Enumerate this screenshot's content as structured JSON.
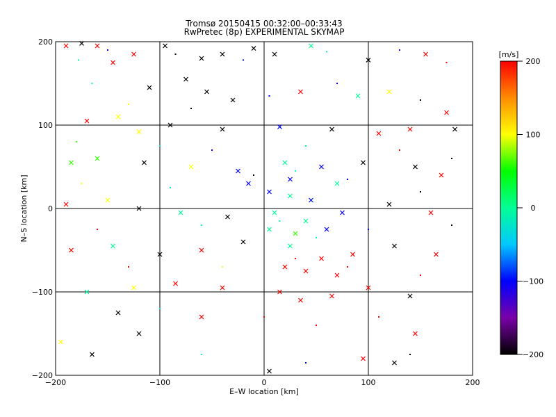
{
  "chart_data": {
    "type": "scatter",
    "title": "Tromsø 20150415 00:32:00–00:33:43",
    "subtitle": "RwPretec (8p) EXPERIMENTAL SKYMAP",
    "xlabel": "E–W location [km]",
    "ylabel": "N–S location [km]",
    "xlim": [
      -200,
      200
    ],
    "ylim": [
      -200,
      200
    ],
    "x_ticks": [
      -200,
      -100,
      0,
      100,
      200
    ],
    "y_ticks": [
      -200,
      -100,
      0,
      100,
      200
    ],
    "grid": true,
    "colorbar": {
      "label": "[m/s]",
      "range": [
        -200,
        200
      ],
      "ticks": [
        -200,
        -100,
        0,
        100,
        200
      ],
      "colors": [
        "#000000",
        "#7a00a8",
        "#0000ff",
        "#00c8ff",
        "#00ff96",
        "#00ff00",
        "#ffff00",
        "#ff8c00",
        "#ff0000"
      ]
    },
    "markers": [
      "dot",
      "cross"
    ],
    "points": [
      {
        "x": -190,
        "y": 195,
        "v": 200,
        "m": "x"
      },
      {
        "x": -175,
        "y": 198,
        "v": -200,
        "m": "x"
      },
      {
        "x": -160,
        "y": 195,
        "v": 200,
        "m": "x"
      },
      {
        "x": -125,
        "y": 185,
        "v": 200,
        "m": "x"
      },
      {
        "x": -95,
        "y": 195,
        "v": -200,
        "m": "x"
      },
      {
        "x": -60,
        "y": 180,
        "v": -200,
        "m": "x"
      },
      {
        "x": -40,
        "y": 185,
        "v": -200,
        "m": "x"
      },
      {
        "x": -10,
        "y": 192,
        "v": -200,
        "m": "x"
      },
      {
        "x": 10,
        "y": 185,
        "v": -200,
        "m": "x"
      },
      {
        "x": 45,
        "y": 195,
        "v": 0,
        "m": "x"
      },
      {
        "x": 100,
        "y": 178,
        "v": -200,
        "m": "x"
      },
      {
        "x": 155,
        "y": 185,
        "v": 200,
        "m": "x"
      },
      {
        "x": -145,
        "y": 175,
        "v": 200,
        "m": "x"
      },
      {
        "x": -110,
        "y": 145,
        "v": -200,
        "m": "x"
      },
      {
        "x": -75,
        "y": 155,
        "v": -200,
        "m": "x"
      },
      {
        "x": -55,
        "y": 140,
        "v": -200,
        "m": "x"
      },
      {
        "x": -30,
        "y": 130,
        "v": -200,
        "m": "x"
      },
      {
        "x": 35,
        "y": 140,
        "v": 200,
        "m": "x"
      },
      {
        "x": 90,
        "y": 135,
        "v": 0,
        "m": "x"
      },
      {
        "x": 120,
        "y": 140,
        "v": 100,
        "m": "x"
      },
      {
        "x": -170,
        "y": 105,
        "v": 200,
        "m": "x"
      },
      {
        "x": -140,
        "y": 110,
        "v": 100,
        "m": "x"
      },
      {
        "x": -120,
        "y": 92,
        "v": 100,
        "m": "x"
      },
      {
        "x": -90,
        "y": 100,
        "v": -200,
        "m": "x"
      },
      {
        "x": -40,
        "y": 95,
        "v": -200,
        "m": "x"
      },
      {
        "x": 15,
        "y": 98,
        "v": -100,
        "m": "x"
      },
      {
        "x": 65,
        "y": 95,
        "v": -200,
        "m": "x"
      },
      {
        "x": 110,
        "y": 90,
        "v": 200,
        "m": "x"
      },
      {
        "x": 140,
        "y": 95,
        "v": 200,
        "m": "x"
      },
      {
        "x": 183,
        "y": 95,
        "v": -200,
        "m": "x"
      },
      {
        "x": 175,
        "y": 115,
        "v": 200,
        "m": "x"
      },
      {
        "x": -185,
        "y": 55,
        "v": 60,
        "m": "x"
      },
      {
        "x": -160,
        "y": 60,
        "v": 60,
        "m": "x"
      },
      {
        "x": -115,
        "y": 55,
        "v": -200,
        "m": "x"
      },
      {
        "x": -70,
        "y": 50,
        "v": 100,
        "m": "x"
      },
      {
        "x": -25,
        "y": 45,
        "v": -100,
        "m": "x"
      },
      {
        "x": 20,
        "y": 55,
        "v": 0,
        "m": "x"
      },
      {
        "x": 55,
        "y": 50,
        "v": -100,
        "m": "x"
      },
      {
        "x": 95,
        "y": 55,
        "v": -200,
        "m": "x"
      },
      {
        "x": 145,
        "y": 50,
        "v": -200,
        "m": "x"
      },
      {
        "x": 170,
        "y": 40,
        "v": 200,
        "m": "x"
      },
      {
        "x": -190,
        "y": 5,
        "v": 200,
        "m": "x"
      },
      {
        "x": -150,
        "y": 10,
        "v": 100,
        "m": "x"
      },
      {
        "x": -120,
        "y": 0,
        "v": -200,
        "m": "x"
      },
      {
        "x": -80,
        "y": -5,
        "v": 0,
        "m": "x"
      },
      {
        "x": -35,
        "y": -10,
        "v": -200,
        "m": "x"
      },
      {
        "x": 10,
        "y": -5,
        "v": 0,
        "m": "x"
      },
      {
        "x": 40,
        "y": -15,
        "v": 0,
        "m": "x"
      },
      {
        "x": 75,
        "y": -5,
        "v": -100,
        "m": "x"
      },
      {
        "x": 120,
        "y": 5,
        "v": -200,
        "m": "x"
      },
      {
        "x": 160,
        "y": -5,
        "v": 200,
        "m": "x"
      },
      {
        "x": -185,
        "y": -50,
        "v": 200,
        "m": "x"
      },
      {
        "x": -145,
        "y": -45,
        "v": 0,
        "m": "x"
      },
      {
        "x": -100,
        "y": -55,
        "v": -200,
        "m": "x"
      },
      {
        "x": -60,
        "y": -50,
        "v": 200,
        "m": "x"
      },
      {
        "x": -20,
        "y": -40,
        "v": -200,
        "m": "x"
      },
      {
        "x": 25,
        "y": -45,
        "v": 0,
        "m": "x"
      },
      {
        "x": 55,
        "y": -60,
        "v": 200,
        "m": "x"
      },
      {
        "x": 85,
        "y": -55,
        "v": 200,
        "m": "x"
      },
      {
        "x": 125,
        "y": -45,
        "v": -200,
        "m": "x"
      },
      {
        "x": 165,
        "y": -55,
        "v": 200,
        "m": "x"
      },
      {
        "x": -170,
        "y": -100,
        "v": 0,
        "m": "x"
      },
      {
        "x": -125,
        "y": -95,
        "v": 100,
        "m": "x"
      },
      {
        "x": -85,
        "y": -90,
        "v": 200,
        "m": "x"
      },
      {
        "x": -40,
        "y": -95,
        "v": 200,
        "m": "x"
      },
      {
        "x": 15,
        "y": -100,
        "v": 200,
        "m": "x"
      },
      {
        "x": 35,
        "y": -110,
        "v": 200,
        "m": "x"
      },
      {
        "x": 65,
        "y": -105,
        "v": 200,
        "m": "x"
      },
      {
        "x": 100,
        "y": -95,
        "v": 200,
        "m": "x"
      },
      {
        "x": 140,
        "y": -105,
        "v": -200,
        "m": "x"
      },
      {
        "x": -195,
        "y": -160,
        "v": 100,
        "m": "x"
      },
      {
        "x": -165,
        "y": -175,
        "v": -200,
        "m": "x"
      },
      {
        "x": -140,
        "y": -125,
        "v": -200,
        "m": "x"
      },
      {
        "x": -120,
        "y": -150,
        "v": -200,
        "m": "x"
      },
      {
        "x": -60,
        "y": -130,
        "v": 200,
        "m": "x"
      },
      {
        "x": 5,
        "y": -195,
        "v": -200,
        "m": "x"
      },
      {
        "x": 95,
        "y": -180,
        "v": 200,
        "m": "x"
      },
      {
        "x": 145,
        "y": -150,
        "v": 200,
        "m": "x"
      },
      {
        "x": 125,
        "y": -185,
        "v": -200,
        "m": "x"
      },
      {
        "x": 5,
        "y": 20,
        "v": -100,
        "m": "x"
      },
      {
        "x": 25,
        "y": 15,
        "v": 0,
        "m": "x"
      },
      {
        "x": 45,
        "y": 10,
        "v": -100,
        "m": "x"
      },
      {
        "x": 5,
        "y": -25,
        "v": 0,
        "m": "x"
      },
      {
        "x": 30,
        "y": -30,
        "v": 60,
        "m": "x"
      },
      {
        "x": 60,
        "y": -25,
        "v": -100,
        "m": "x"
      },
      {
        "x": 20,
        "y": -70,
        "v": 200,
        "m": "x"
      },
      {
        "x": 40,
        "y": -75,
        "v": 200,
        "m": "x"
      },
      {
        "x": 70,
        "y": -80,
        "v": 200,
        "m": "x"
      },
      {
        "x": 25,
        "y": 35,
        "v": -100,
        "m": "x"
      },
      {
        "x": -15,
        "y": 30,
        "v": -100,
        "m": "x"
      },
      {
        "x": 70,
        "y": 30,
        "v": 0,
        "m": "x"
      },
      {
        "x": -178,
        "y": 178,
        "v": 0,
        "m": "."
      },
      {
        "x": -150,
        "y": 190,
        "v": -100,
        "m": "."
      },
      {
        "x": -85,
        "y": 185,
        "v": -200,
        "m": "."
      },
      {
        "x": -20,
        "y": 178,
        "v": -100,
        "m": "."
      },
      {
        "x": 60,
        "y": 188,
        "v": 0,
        "m": "."
      },
      {
        "x": 130,
        "y": 190,
        "v": -100,
        "m": "."
      },
      {
        "x": 175,
        "y": 175,
        "v": 200,
        "m": "."
      },
      {
        "x": -165,
        "y": 150,
        "v": 0,
        "m": "."
      },
      {
        "x": -130,
        "y": 125,
        "v": 100,
        "m": "."
      },
      {
        "x": -70,
        "y": 120,
        "v": -200,
        "m": "."
      },
      {
        "x": 5,
        "y": 135,
        "v": -100,
        "m": "."
      },
      {
        "x": 70,
        "y": 150,
        "v": -100,
        "m": "."
      },
      {
        "x": 150,
        "y": 130,
        "v": -200,
        "m": "."
      },
      {
        "x": -180,
        "y": 80,
        "v": 60,
        "m": "."
      },
      {
        "x": -100,
        "y": 75,
        "v": 0,
        "m": "."
      },
      {
        "x": -50,
        "y": 70,
        "v": -100,
        "m": "."
      },
      {
        "x": 40,
        "y": 75,
        "v": 0,
        "m": "."
      },
      {
        "x": 130,
        "y": 70,
        "v": 200,
        "m": "."
      },
      {
        "x": 180,
        "y": 60,
        "v": -200,
        "m": "."
      },
      {
        "x": -175,
        "y": 30,
        "v": 100,
        "m": "."
      },
      {
        "x": -90,
        "y": 25,
        "v": 0,
        "m": "."
      },
      {
        "x": -10,
        "y": 40,
        "v": -200,
        "m": "."
      },
      {
        "x": 30,
        "y": 45,
        "v": 0,
        "m": "."
      },
      {
        "x": 80,
        "y": 35,
        "v": -100,
        "m": "."
      },
      {
        "x": 150,
        "y": 20,
        "v": -200,
        "m": "."
      },
      {
        "x": -160,
        "y": -25,
        "v": 200,
        "m": "."
      },
      {
        "x": -60,
        "y": -20,
        "v": 0,
        "m": "."
      },
      {
        "x": 15,
        "y": -15,
        "v": 0,
        "m": "."
      },
      {
        "x": 50,
        "y": -35,
        "v": 0,
        "m": "."
      },
      {
        "x": 100,
        "y": -25,
        "v": -100,
        "m": "."
      },
      {
        "x": 180,
        "y": -20,
        "v": -200,
        "m": "."
      },
      {
        "x": -130,
        "y": -70,
        "v": 200,
        "m": "."
      },
      {
        "x": -40,
        "y": -70,
        "v": 100,
        "m": "."
      },
      {
        "x": 30,
        "y": -60,
        "v": 200,
        "m": "."
      },
      {
        "x": 80,
        "y": -70,
        "v": 200,
        "m": "."
      },
      {
        "x": 150,
        "y": -80,
        "v": 200,
        "m": "."
      },
      {
        "x": -100,
        "y": -120,
        "v": 0,
        "m": "."
      },
      {
        "x": 0,
        "y": -130,
        "v": 200,
        "m": "."
      },
      {
        "x": 50,
        "y": -140,
        "v": 200,
        "m": "."
      },
      {
        "x": 110,
        "y": -130,
        "v": 200,
        "m": "."
      },
      {
        "x": -60,
        "y": -175,
        "v": 0,
        "m": "."
      },
      {
        "x": 40,
        "y": -185,
        "v": -100,
        "m": "."
      },
      {
        "x": 140,
        "y": -175,
        "v": -200,
        "m": "."
      }
    ]
  }
}
